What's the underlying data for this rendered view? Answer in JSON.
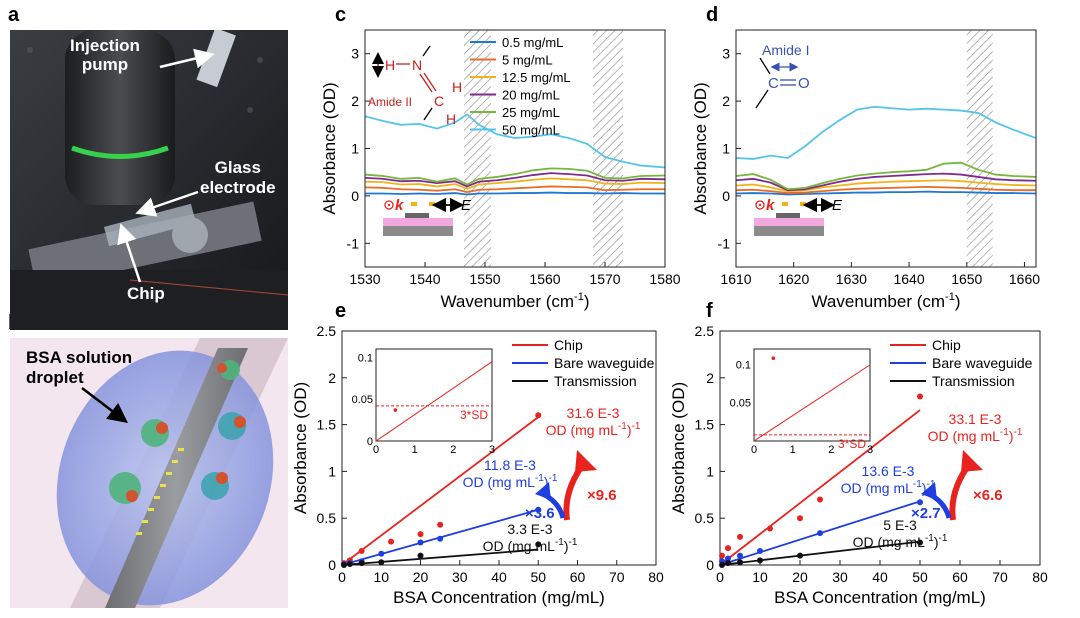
{
  "figure": {
    "panel_labels": [
      "a",
      "b",
      "c",
      "d",
      "e",
      "f"
    ],
    "colors": {
      "red": "#e8231e",
      "blue": "#1f3ee0",
      "black": "#111111",
      "c05": "#1f77d4",
      "c5": "#e86b26",
      "c12": "#f2b21a",
      "c20": "#7d2c8e",
      "c25": "#77b63c",
      "c50": "#55c3ea"
    }
  },
  "panel_a": {
    "labels": {
      "pump": "Injection pump",
      "glass_line1": "Glass",
      "glass_line2": "electrode",
      "chip": "Chip"
    }
  },
  "panel_b": {
    "labels": {
      "droplet_line1": "BSA solution",
      "droplet_line2": "droplet"
    }
  },
  "chart_data": [
    {
      "id": "c",
      "type": "line",
      "xlabel": "Wavenumber (cm",
      "xlabel_sup": "-1",
      "xlabel_end": ")",
      "ylabel": "Absorbance (OD)",
      "xlim": [
        1530,
        1580
      ],
      "ylim": [
        -1.5,
        3.5
      ],
      "xticks": [
        "1530",
        "1540",
        "1550",
        "1560",
        "1570",
        "1580"
      ],
      "yticks": [
        "-1",
        "0",
        "1",
        "2",
        "3"
      ],
      "hatch_regions": [
        [
          1546.5,
          1551
        ],
        [
          1568,
          1573
        ]
      ],
      "legend": [
        "0.5 mg/mL",
        "5 mg/mL",
        "12.5 mg/mL",
        "20 mg/mL",
        "25 mg/mL",
        "50 mg/mL"
      ],
      "x": [
        1530,
        1533,
        1536,
        1539,
        1542,
        1545,
        1547,
        1549,
        1552,
        1555,
        1558,
        1561,
        1564,
        1567,
        1570,
        1573,
        1576,
        1580
      ],
      "series": [
        {
          "name": "0.5 mg/mL",
          "values": [
            0.05,
            0.05,
            0.04,
            0.05,
            0.04,
            0.06,
            0.03,
            0.05,
            0.05,
            0.06,
            0.06,
            0.07,
            0.06,
            0.06,
            0.05,
            0.06,
            0.05,
            0.05
          ]
        },
        {
          "name": "5 mg/mL",
          "values": [
            0.18,
            0.17,
            0.14,
            0.13,
            0.11,
            0.14,
            0.08,
            0.13,
            0.14,
            0.16,
            0.18,
            0.2,
            0.19,
            0.18,
            0.12,
            0.13,
            0.14,
            0.14
          ]
        },
        {
          "name": "12.5 mg/mL",
          "values": [
            0.3,
            0.29,
            0.24,
            0.25,
            0.2,
            0.25,
            0.15,
            0.24,
            0.27,
            0.3,
            0.34,
            0.37,
            0.35,
            0.33,
            0.26,
            0.25,
            0.28,
            0.27
          ]
        },
        {
          "name": "20 mg/mL",
          "values": [
            0.38,
            0.36,
            0.31,
            0.32,
            0.27,
            0.31,
            0.2,
            0.3,
            0.33,
            0.38,
            0.44,
            0.48,
            0.46,
            0.43,
            0.33,
            0.32,
            0.36,
            0.35
          ]
        },
        {
          "name": "25 mg/mL",
          "values": [
            0.45,
            0.42,
            0.36,
            0.38,
            0.3,
            0.37,
            0.24,
            0.36,
            0.4,
            0.46,
            0.54,
            0.58,
            0.57,
            0.53,
            0.38,
            0.37,
            0.42,
            0.43
          ]
        },
        {
          "name": "50 mg/mL",
          "values": [
            1.68,
            1.58,
            1.5,
            1.52,
            1.42,
            1.55,
            1.72,
            1.5,
            1.3,
            1.22,
            1.25,
            1.3,
            1.22,
            1.1,
            0.82,
            0.72,
            0.64,
            0.6
          ]
        }
      ],
      "annotation": {
        "h1": "H",
        "h2": "N",
        "h3": "C",
        "h4": "H",
        "h5": "H",
        "label": "Amide II"
      },
      "inset_text": {
        "k": "k",
        "e": "E"
      }
    },
    {
      "id": "d",
      "type": "line",
      "xlabel": "Wavenumber (cm",
      "xlabel_sup": "-1",
      "xlabel_end": ")",
      "ylabel": "Absorbance (OD)",
      "xlim": [
        1610,
        1662
      ],
      "ylim": [
        -1.5,
        3.5
      ],
      "xticks": [
        "1610",
        "1620",
        "1630",
        "1640",
        "1650",
        "1660"
      ],
      "yticks": [
        "-1",
        "0",
        "1",
        "2",
        "3"
      ],
      "hatch_regions": [
        [
          1650,
          1654.5
        ]
      ],
      "x": [
        1610,
        1613,
        1616,
        1619,
        1622,
        1625,
        1628,
        1631,
        1634,
        1637,
        1640,
        1643,
        1646,
        1649,
        1652,
        1655,
        1658,
        1662
      ],
      "series": [
        {
          "name": "0.5 mg/mL",
          "values": [
            0.05,
            0.06,
            0.05,
            0.03,
            0.04,
            0.05,
            0.06,
            0.07,
            0.07,
            0.08,
            0.08,
            0.09,
            0.08,
            0.08,
            0.07,
            0.06,
            0.06,
            0.05
          ]
        },
        {
          "name": "5 mg/mL",
          "values": [
            0.12,
            0.13,
            0.1,
            0.06,
            0.07,
            0.1,
            0.13,
            0.15,
            0.16,
            0.17,
            0.18,
            0.19,
            0.18,
            0.17,
            0.15,
            0.13,
            0.12,
            0.12
          ]
        },
        {
          "name": "12.5 mg/mL",
          "values": [
            0.22,
            0.24,
            0.18,
            0.1,
            0.12,
            0.18,
            0.22,
            0.26,
            0.28,
            0.3,
            0.31,
            0.32,
            0.33,
            0.31,
            0.28,
            0.25,
            0.23,
            0.22
          ]
        },
        {
          "name": "20 mg/mL",
          "values": [
            0.33,
            0.36,
            0.28,
            0.12,
            0.14,
            0.22,
            0.3,
            0.36,
            0.4,
            0.42,
            0.44,
            0.46,
            0.47,
            0.45,
            0.4,
            0.35,
            0.33,
            0.32
          ]
        },
        {
          "name": "25 mg/mL",
          "values": [
            0.42,
            0.46,
            0.34,
            0.14,
            0.17,
            0.27,
            0.36,
            0.43,
            0.47,
            0.5,
            0.52,
            0.55,
            0.68,
            0.7,
            0.55,
            0.45,
            0.42,
            0.4
          ]
        },
        {
          "name": "50 mg/mL",
          "values": [
            0.8,
            0.78,
            0.85,
            0.8,
            1.05,
            1.35,
            1.6,
            1.82,
            1.88,
            1.85,
            1.82,
            1.84,
            1.82,
            1.8,
            1.75,
            1.55,
            1.4,
            1.22
          ]
        }
      ],
      "annotation": {
        "label": "Amide I",
        "c": "C",
        "o": "O"
      },
      "inset_text": {
        "k": "k",
        "e": "E"
      }
    },
    {
      "id": "e",
      "type": "scatter",
      "xlabel": "BSA Concentration (mg/mL)",
      "ylabel": "Absorbance (OD)",
      "xlim": [
        0,
        80
      ],
      "ylim": [
        0,
        2.5
      ],
      "xticks": [
        "0",
        "10",
        "20",
        "30",
        "40",
        "50",
        "60",
        "70",
        "80"
      ],
      "yticks": [
        "0",
        "0.5",
        "1",
        "1.5",
        "2",
        "2.5"
      ],
      "legend": [
        "Chip",
        "Bare waveguide",
        "Transmission"
      ],
      "series": [
        {
          "name": "Chip",
          "x": [
            0.5,
            2,
            5,
            12.5,
            20,
            25,
            50
          ],
          "values": [
            0.02,
            0.05,
            0.15,
            0.25,
            0.33,
            0.43,
            1.6
          ],
          "slope": 0.0316
        },
        {
          "name": "Bare waveguide",
          "x": [
            0.5,
            2,
            5,
            10,
            20,
            25,
            50
          ],
          "values": [
            0.01,
            0.02,
            0.04,
            0.12,
            0.24,
            0.28,
            0.59
          ],
          "slope": 0.0118
        },
        {
          "name": "Transmission",
          "x": [
            0.5,
            2,
            5,
            10,
            20,
            50
          ],
          "values": [
            0.0,
            0.01,
            0.02,
            0.03,
            0.1,
            0.22
          ],
          "slope": 0.0033
        }
      ],
      "slope_labels": {
        "red": {
          "l1": "31.6 E-3",
          "l2": "OD (mg mL",
          "sup": "-1",
          "l2b": ")",
          "sup2": "-1"
        },
        "blue": {
          "l1": "11.8 E-3",
          "l2": "OD (mg mL",
          "sup": "-1",
          "l2b": ")",
          "sup2": "-1"
        },
        "black": {
          "l1": "3.3 E-3",
          "l2": "OD (mg mL",
          "sup": "-1",
          "l2b": ")",
          "sup2": "-1"
        }
      },
      "factors": {
        "red": "×9.6",
        "blue": "×3.6"
      },
      "inset": {
        "xlim": [
          0,
          3
        ],
        "ylim": [
          0,
          0.11
        ],
        "xticks": [
          "0",
          "1",
          "2",
          "3"
        ],
        "yticks": [
          "0",
          "0.05",
          "0.1"
        ],
        "sd_line": 0.042,
        "sd_label": "3*SD",
        "point": {
          "x": 0.5,
          "y": 0.037
        }
      }
    },
    {
      "id": "f",
      "type": "scatter",
      "xlabel": "BSA Concentration (mg/mL)",
      "ylabel": "Absorbance (OD)",
      "xlim": [
        0,
        80
      ],
      "ylim": [
        0,
        2.5
      ],
      "xticks": [
        "0",
        "10",
        "20",
        "30",
        "40",
        "50",
        "60",
        "70",
        "80"
      ],
      "yticks": [
        "0",
        "0.5",
        "1",
        "1.5",
        "2",
        "2.5"
      ],
      "legend": [
        "Chip",
        "Bare waveguide",
        "Transmission"
      ],
      "series": [
        {
          "name": "Chip",
          "x": [
            0.5,
            2,
            5,
            12.5,
            20,
            25,
            50
          ],
          "values": [
            0.1,
            0.18,
            0.3,
            0.39,
            0.5,
            0.7,
            1.8
          ],
          "slope": 0.0331
        },
        {
          "name": "Bare waveguide",
          "x": [
            0.5,
            2,
            5,
            10,
            25,
            50
          ],
          "values": [
            0.04,
            0.07,
            0.1,
            0.15,
            0.34,
            0.67
          ],
          "slope": 0.0136
        },
        {
          "name": "Transmission",
          "x": [
            0.5,
            2,
            5,
            10,
            20,
            50
          ],
          "values": [
            0.0,
            0.02,
            0.03,
            0.05,
            0.1,
            0.24
          ],
          "slope": 0.005
        }
      ],
      "slope_labels": {
        "red": {
          "l1": "33.1 E-3",
          "l2": "OD (mg mL",
          "sup": "-1",
          "l2b": ")",
          "sup2": "-1"
        },
        "blue": {
          "l1": "13.6 E-3",
          "l2": "OD (mg mL",
          "sup": "-1",
          "l2b": ")",
          "sup2": "-1"
        },
        "black": {
          "l1": "5 E-3",
          "l2": "OD (mg mL",
          "sup": "-1",
          "l2b": ")",
          "sup2": "-1"
        }
      },
      "factors": {
        "red": "×6.6",
        "blue": "×2.7"
      },
      "inset": {
        "xlim": [
          0,
          3
        ],
        "ylim": [
          0,
          0.12
        ],
        "xticks": [
          "0",
          "1",
          "2",
          "3"
        ],
        "yticks": [
          "0.05",
          "0.1"
        ],
        "sd_line": 0.008,
        "sd_label": "3*SD",
        "point": {
          "x": 0.5,
          "y": 0.108
        }
      }
    }
  ]
}
